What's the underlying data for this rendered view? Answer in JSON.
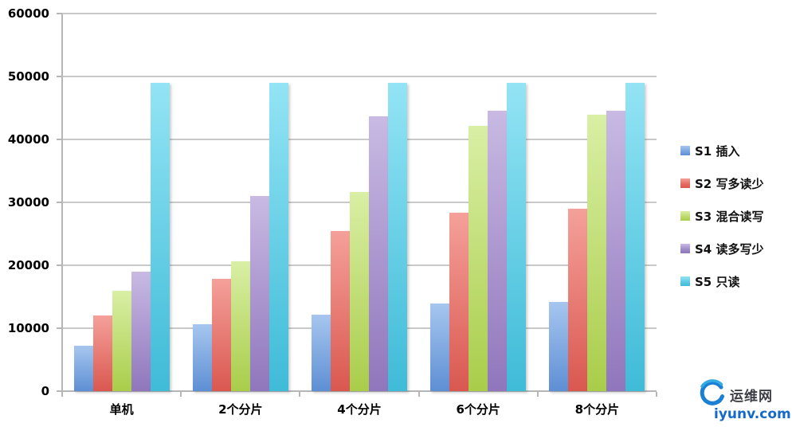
{
  "chart_data": {
    "type": "bar",
    "title": "",
    "categories": [
      "单机",
      "2个分片",
      "4个分片",
      "6个分片",
      "8个分片"
    ],
    "series": [
      {
        "name": "S1 插入",
        "color_light": "#a6c6ef",
        "color_dark": "#5e8fd4",
        "legend_color": "#7aa4df",
        "values": [
          7200,
          10600,
          12200,
          13900,
          14200
        ]
      },
      {
        "name": "S2 写多读少",
        "color_light": "#f5a09a",
        "color_dark": "#d95850",
        "legend_color": "#e26a60",
        "values": [
          12000,
          17800,
          25500,
          28400,
          29000
        ]
      },
      {
        "name": "S3 混合读写",
        "color_light": "#d9efa5",
        "color_dark": "#a9cd4a",
        "legend_color": "#bcd96b",
        "values": [
          16000,
          20600,
          31700,
          42200,
          43900
        ]
      },
      {
        "name": "S4 读多写少",
        "color_light": "#c8bae3",
        "color_dark": "#9076bc",
        "legend_color": "#9e89c7",
        "values": [
          19000,
          31000,
          43700,
          44600,
          44500
        ]
      },
      {
        "name": "S5 只读",
        "color_light": "#93e4f4",
        "color_dark": "#3fbbd8",
        "legend_color": "#5bc9e1",
        "values": [
          49000,
          49000,
          49000,
          49000,
          49000
        ]
      }
    ],
    "ylim": [
      0,
      60000
    ],
    "y_tick_step": 10000,
    "y_ticks": [
      "0",
      "10000",
      "20000",
      "30000",
      "40000",
      "50000",
      "60000"
    ],
    "grid": true,
    "legend_position": "right",
    "gridline_color": "#c9c9c9"
  },
  "watermark": {
    "site_name": "运维网",
    "domain": "iyunv.com"
  }
}
